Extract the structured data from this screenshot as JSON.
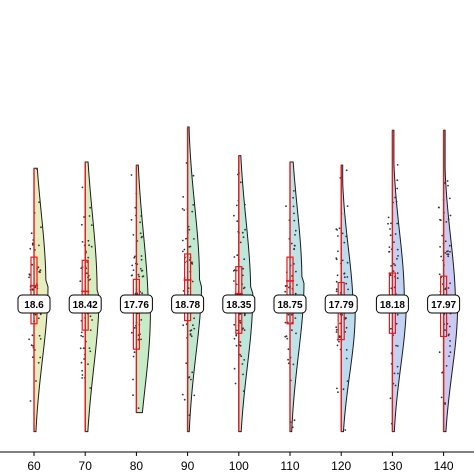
{
  "chart_data": {
    "type": "violin",
    "categories": [
      "60",
      "70",
      "80",
      "90",
      "100",
      "110",
      "120",
      "130",
      "140"
    ],
    "median_labels": [
      "18.6",
      "18.42",
      "17.76",
      "18.78",
      "18.35",
      "18.75",
      "17.79",
      "18.18",
      "17.97"
    ],
    "ranges": [
      {
        "max": 22.3,
        "q3": 19.5,
        "median": 18.6,
        "q1": 17.4,
        "min": 14.0
      },
      {
        "max": 22.5,
        "q3": 19.4,
        "median": 18.42,
        "q1": 17.2,
        "min": 14.0
      },
      {
        "max": 22.4,
        "q3": 18.8,
        "median": 17.76,
        "q1": 16.6,
        "min": 14.6
      },
      {
        "max": 23.6,
        "q3": 19.6,
        "median": 18.78,
        "q1": 17.5,
        "min": 14.0
      },
      {
        "max": 22.7,
        "q3": 19.2,
        "median": 18.35,
        "q1": 17.1,
        "min": 14.0
      },
      {
        "max": 22.5,
        "q3": 19.5,
        "median": 18.75,
        "q1": 17.4,
        "min": 14.0
      },
      {
        "max": 22.4,
        "q3": 18.7,
        "median": 17.79,
        "q1": 16.9,
        "min": 14.0
      },
      {
        "max": 23.5,
        "q3": 19.0,
        "median": 18.18,
        "q1": 17.1,
        "min": 14.0
      },
      {
        "max": 23.5,
        "q3": 18.9,
        "median": 17.97,
        "q1": 17.0,
        "min": 14.0
      }
    ],
    "fill_colors": [
      "#e6edbf",
      "#d6ecc1",
      "#c6ebc6",
      "#bfe8cf",
      "#bee6dc",
      "#bde2e7",
      "#bddaef",
      "#c1d2f2",
      "#cbcaf2"
    ],
    "box_color": "#e41a1c",
    "point_color": "#333333",
    "ylim": [
      13.8,
      24.2
    ],
    "grid": false
  }
}
